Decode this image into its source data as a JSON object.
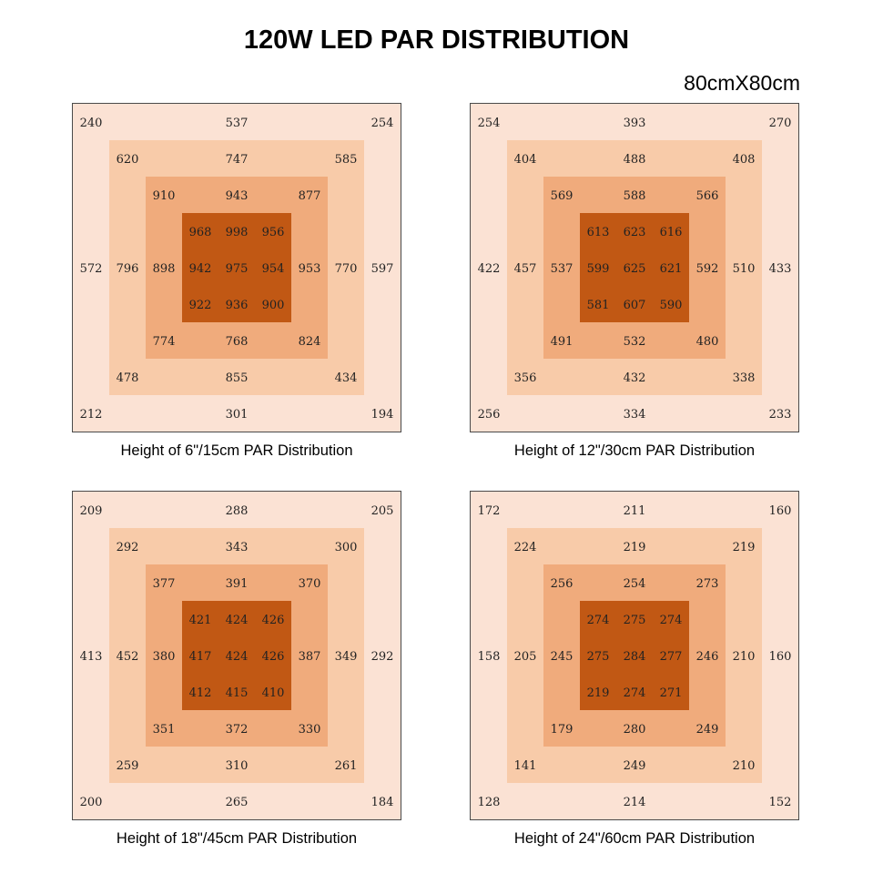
{
  "title": "120W LED PAR DISTRIBUTION",
  "subtitle": "80cmX80cm",
  "colors": {
    "ring1": "#fbe2d4",
    "ring2": "#f8cba9",
    "ring3": "#f0ab7c",
    "core": "#c15814"
  },
  "chart_data": [
    {
      "type": "heatmap",
      "title": "Height of 6\"/15cm PAR Distribution",
      "rows": [
        [
          "240",
          "",
          "",
          "",
          "537",
          "",
          "",
          "",
          "254"
        ],
        [
          "",
          "620",
          "",
          "",
          "747",
          "",
          "",
          "585",
          ""
        ],
        [
          "",
          "",
          "910",
          "",
          "943",
          "",
          "877",
          "",
          ""
        ],
        [
          "",
          "",
          "",
          "968",
          "998",
          "956",
          "",
          "",
          ""
        ],
        [
          "572",
          "796",
          "898",
          "942",
          "975",
          "954",
          "953",
          "770",
          "597"
        ],
        [
          "",
          "",
          "",
          "922",
          "936",
          "900",
          "",
          "",
          ""
        ],
        [
          "",
          "",
          "774",
          "",
          "768",
          "",
          "824",
          "",
          ""
        ],
        [
          "",
          "478",
          "",
          "",
          "855",
          "",
          "",
          "434",
          ""
        ],
        [
          "212",
          "",
          "",
          "",
          "301",
          "",
          "",
          "",
          "194"
        ]
      ]
    },
    {
      "type": "heatmap",
      "title": "Height of 12\"/30cm PAR Distribution",
      "rows": [
        [
          "254",
          "",
          "",
          "",
          "393",
          "",
          "",
          "",
          "270"
        ],
        [
          "",
          "404",
          "",
          "",
          "488",
          "",
          "",
          "408",
          ""
        ],
        [
          "",
          "",
          "569",
          "",
          "588",
          "",
          "566",
          "",
          ""
        ],
        [
          "",
          "",
          "",
          "613",
          "623",
          "616",
          "",
          "",
          ""
        ],
        [
          "422",
          "457",
          "537",
          "599",
          "625",
          "621",
          "592",
          "510",
          "433"
        ],
        [
          "",
          "",
          "",
          "581",
          "607",
          "590",
          "",
          "",
          ""
        ],
        [
          "",
          "",
          "491",
          "",
          "532",
          "",
          "480",
          "",
          ""
        ],
        [
          "",
          "356",
          "",
          "",
          "432",
          "",
          "",
          "338",
          ""
        ],
        [
          "256",
          "",
          "",
          "",
          "334",
          "",
          "",
          "",
          "233"
        ]
      ]
    },
    {
      "type": "heatmap",
      "title": "Height of 18\"/45cm PAR Distribution",
      "rows": [
        [
          "209",
          "",
          "",
          "",
          "288",
          "",
          "",
          "",
          "205"
        ],
        [
          "",
          "292",
          "",
          "",
          "343",
          "",
          "",
          "300",
          ""
        ],
        [
          "",
          "",
          "377",
          "",
          "391",
          "",
          "370",
          "",
          ""
        ],
        [
          "",
          "",
          "",
          "421",
          "424",
          "426",
          "",
          "",
          ""
        ],
        [
          "413",
          "452",
          "380",
          "417",
          "424",
          "426",
          "387",
          "349",
          "292"
        ],
        [
          "",
          "",
          "",
          "412",
          "415",
          "410",
          "",
          "",
          ""
        ],
        [
          "",
          "",
          "351",
          "",
          "372",
          "",
          "330",
          "",
          ""
        ],
        [
          "",
          "259",
          "",
          "",
          "310",
          "",
          "",
          "261",
          ""
        ],
        [
          "200",
          "",
          "",
          "",
          "265",
          "",
          "",
          "",
          "184"
        ]
      ]
    },
    {
      "type": "heatmap",
      "title": "Height of 24\"/60cm PAR Distribution",
      "rows": [
        [
          "172",
          "",
          "",
          "",
          "211",
          "",
          "",
          "",
          "160"
        ],
        [
          "",
          "224",
          "",
          "",
          "219",
          "",
          "",
          "219",
          ""
        ],
        [
          "",
          "",
          "256",
          "",
          "254",
          "",
          "273",
          "",
          ""
        ],
        [
          "",
          "",
          "",
          "274",
          "275",
          "274",
          "",
          "",
          ""
        ],
        [
          "158",
          "205",
          "245",
          "275",
          "284",
          "277",
          "246",
          "210",
          "160"
        ],
        [
          "",
          "",
          "",
          "219",
          "274",
          "271",
          "",
          "",
          ""
        ],
        [
          "",
          "",
          "179",
          "",
          "280",
          "",
          "249",
          "",
          ""
        ],
        [
          "",
          "141",
          "",
          "",
          "249",
          "",
          "",
          "210",
          ""
        ],
        [
          "128",
          "",
          "",
          "",
          "214",
          "",
          "",
          "",
          "152"
        ]
      ]
    }
  ]
}
